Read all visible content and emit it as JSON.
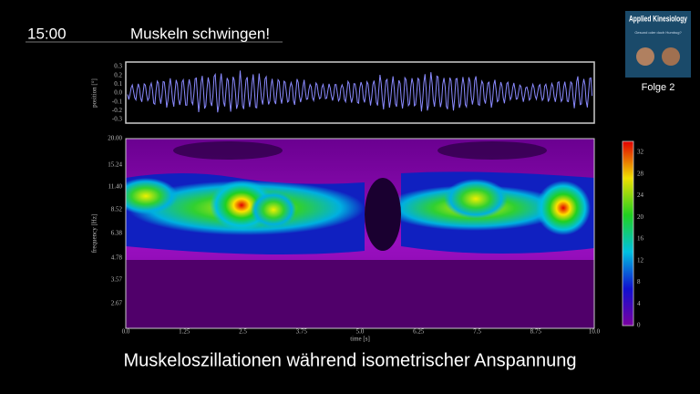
{
  "header": {
    "time": "15:00",
    "title": "Muskeln schwingen!"
  },
  "logo": {
    "title": "Applied Kinesiology",
    "subtitle": "Gesund oder doch Humbug?",
    "episode": "Folge 2"
  },
  "signal_plot": {
    "ylabel": "position [°]",
    "yticks": [
      "0.3",
      "0.2",
      "0.1",
      "0.0",
      "-0.1",
      "-0.2",
      "-0.3"
    ]
  },
  "spectrogram": {
    "ylabel": "frequency [Hz]",
    "xlabel": "time [s]",
    "yticks": [
      "20.00",
      "15.24",
      "11.40",
      "8.52",
      "6.38",
      "4.78",
      "3.57",
      "2.67"
    ],
    "xticks": [
      "0.0",
      "1.25",
      "2.5",
      "3.75",
      "5.0",
      "6.25",
      "7.5",
      "8.75",
      "10.0"
    ],
    "colorbar_ticks": [
      "32",
      "28",
      "24",
      "20",
      "16",
      "12",
      "8",
      "4",
      "0"
    ]
  },
  "caption": "Muskeloszillationen während isometrischer Anspannung"
}
